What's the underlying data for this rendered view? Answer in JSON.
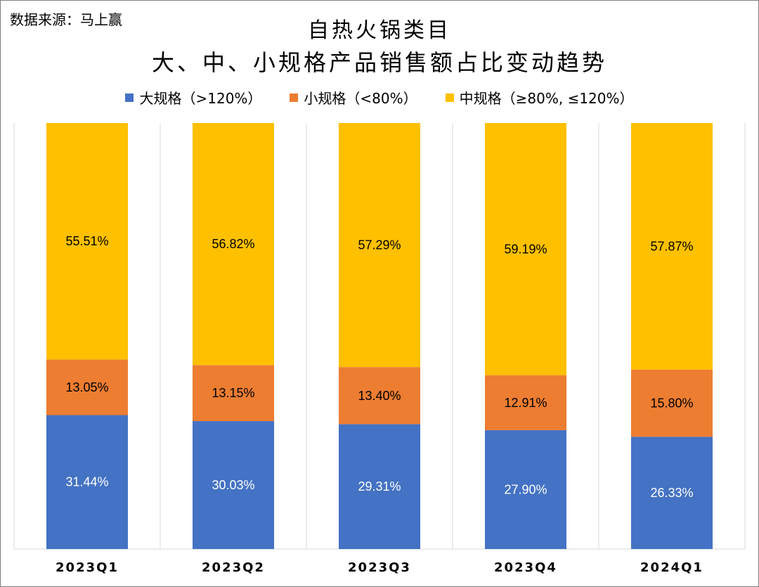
{
  "source": "数据来源：马上赢",
  "chart_data": {
    "type": "bar",
    "stacked": true,
    "title": "自热火锅类目",
    "subtitle": "大、中、小规格产品销售额占比变动趋势",
    "categories": [
      "2023Q1",
      "2023Q2",
      "2023Q3",
      "2023Q4",
      "2024Q1"
    ],
    "series": [
      {
        "name": "大规格（>120%）",
        "color": "#4472C4",
        "values": [
          31.44,
          30.03,
          29.31,
          27.9,
          26.33
        ],
        "labels": [
          "31.44%",
          "30.03%",
          "29.31%",
          "27.90%",
          "26.33%"
        ],
        "label_color": "#ffffff"
      },
      {
        "name": "小规格（<80%）",
        "color": "#ED7D31",
        "values": [
          13.05,
          13.15,
          13.4,
          12.91,
          15.8
        ],
        "labels": [
          "13.05%",
          "13.15%",
          "13.40%",
          "12.91%",
          "15.80%"
        ],
        "label_color": "#000000"
      },
      {
        "name": "中规格（≥80%, ≤120%）",
        "color": "#FFC000",
        "values": [
          55.51,
          56.82,
          57.29,
          59.19,
          57.87
        ],
        "labels": [
          "55.51%",
          "56.82%",
          "57.29%",
          "59.19%",
          "57.87%"
        ],
        "label_color": "#000000"
      }
    ],
    "ylim": [
      0,
      100
    ],
    "legend_position": "top",
    "grid": "vertical-category-separators"
  }
}
